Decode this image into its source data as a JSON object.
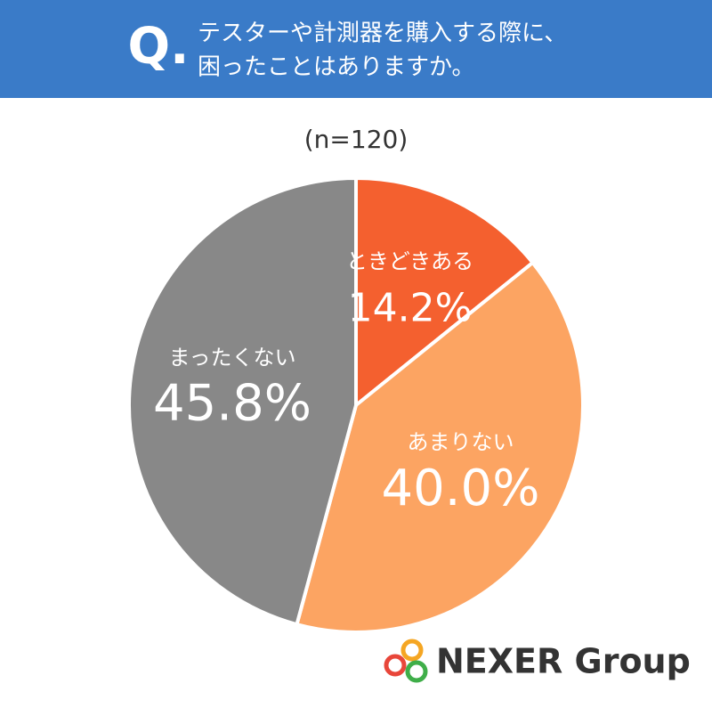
{
  "chart_data": {
    "type": "pie",
    "prefix": "Q.",
    "title_lines": [
      "テスターや計測器を購入する際に、",
      "困ったことはありますか。"
    ],
    "subtitle": "(n=120)",
    "categories": [
      "ときどきある",
      "あまりない",
      "まったくない"
    ],
    "values": [
      14.2,
      40.0,
      45.8
    ],
    "value_labels": [
      "14.2%",
      "40.0%",
      "45.8%"
    ],
    "colors": [
      "#f4602f",
      "#fca462",
      "#888888"
    ],
    "brand": "NEXER Group"
  }
}
